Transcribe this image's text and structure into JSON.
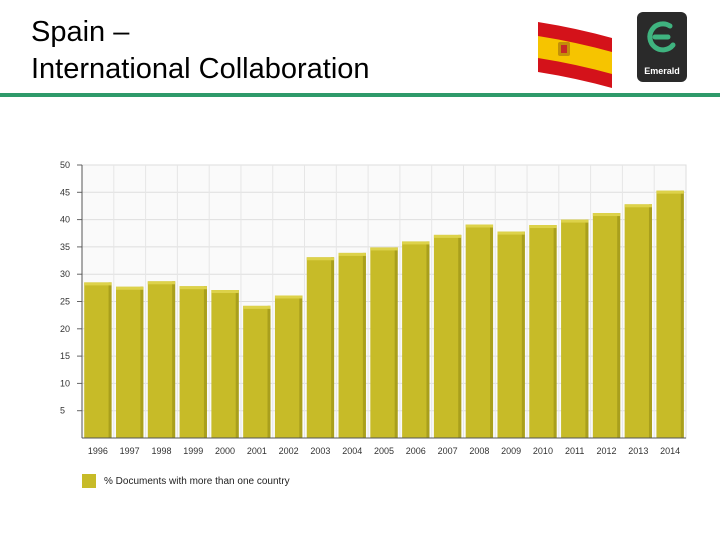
{
  "slide": {
    "title_line1": "Spain –",
    "title_line2": "International Collaboration"
  },
  "logo": {
    "text": "Emerald",
    "icon": "emerald-logo-icon"
  },
  "flag": {
    "icon": "spain-flag-icon",
    "colors": {
      "red": "#d4121a",
      "yellow": "#f6c400"
    }
  },
  "colors": {
    "accent_rule": "#2e9a6a",
    "bar": "#c7bb28",
    "bar_top": "#ddd24a",
    "bar_side": "#a99f1c"
  },
  "chart_data": {
    "type": "bar",
    "categories": [
      "1996",
      "1997",
      "1998",
      "1999",
      "2000",
      "2001",
      "2002",
      "2003",
      "2004",
      "2005",
      "2006",
      "2007",
      "2008",
      "2009",
      "2010",
      "2011",
      "2012",
      "2013",
      "2014"
    ],
    "series": [
      {
        "name": "% Documents with more than one country",
        "values": [
          28.5,
          27.7,
          28.7,
          27.8,
          27.1,
          24.2,
          26.1,
          33.1,
          33.9,
          34.9,
          36.0,
          37.2,
          39.1,
          37.8,
          39.0,
          40.0,
          41.2,
          42.8,
          45.3
        ]
      }
    ],
    "yticks": [
      5,
      10,
      15,
      20,
      25,
      30,
      35,
      40,
      45,
      50
    ],
    "ylim": [
      0,
      50
    ],
    "grid": true,
    "legend_position": "bottom-left"
  }
}
